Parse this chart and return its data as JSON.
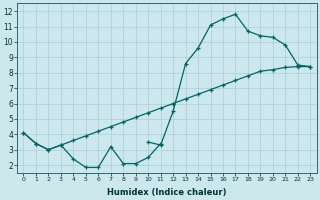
{
  "xlabel": "Humidex (Indice chaleur)",
  "bg_color": "#cce8ec",
  "grid_color": "#aacdd4",
  "line_color": "#006666",
  "xlim": [
    -0.5,
    23.5
  ],
  "ylim": [
    1.5,
    12.5
  ],
  "xticks": [
    0,
    1,
    2,
    3,
    4,
    5,
    6,
    7,
    8,
    9,
    10,
    11,
    12,
    13,
    14,
    15,
    16,
    17,
    18,
    19,
    20,
    21,
    22,
    23
  ],
  "yticks": [
    2,
    3,
    4,
    5,
    6,
    7,
    8,
    9,
    10,
    11,
    12
  ],
  "line1_x": [
    0,
    1,
    2,
    3,
    4,
    5,
    6,
    7,
    8,
    9,
    10,
    11
  ],
  "line1_y": [
    4.1,
    3.4,
    3.0,
    3.3,
    2.4,
    1.85,
    1.85,
    3.2,
    2.1,
    2.1,
    2.5,
    3.4
  ],
  "line2_x": [
    0,
    1,
    2,
    3,
    4,
    5,
    6,
    7,
    8,
    9,
    10,
    11,
    12,
    13,
    14,
    15,
    16,
    17,
    18,
    19,
    20,
    21,
    22,
    23
  ],
  "line2_y": [
    4.1,
    3.4,
    3.0,
    3.3,
    3.6,
    3.9,
    4.2,
    4.5,
    4.8,
    5.1,
    5.4,
    5.7,
    6.0,
    6.3,
    6.6,
    6.9,
    7.2,
    7.5,
    7.8,
    8.1,
    8.2,
    8.35,
    8.4,
    8.4
  ],
  "line3_x": [
    10,
    11,
    12,
    13,
    14,
    15,
    16,
    17,
    18,
    19,
    20,
    21,
    22,
    23
  ],
  "line3_y": [
    3.5,
    3.3,
    5.5,
    8.6,
    9.6,
    11.1,
    11.5,
    11.8,
    10.7,
    10.4,
    10.3,
    9.8,
    8.5,
    8.4
  ]
}
